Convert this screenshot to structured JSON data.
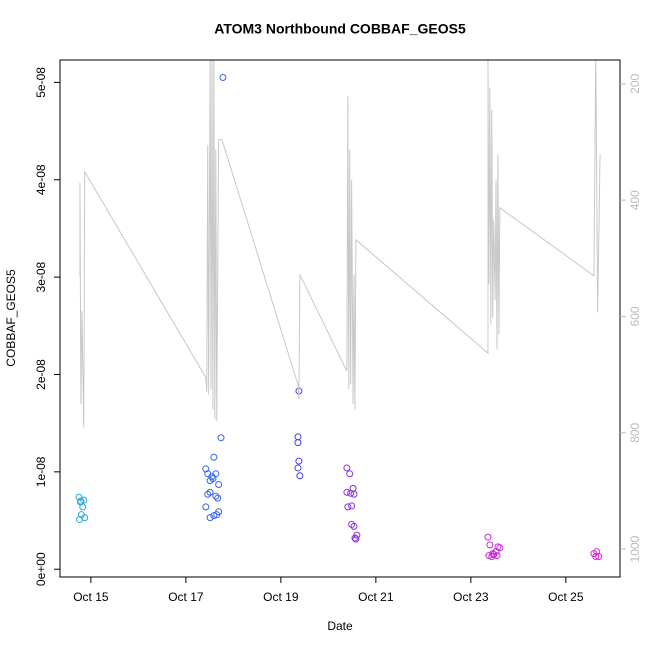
{
  "chart_data": {
    "type": "scatter",
    "title": "ATOM3 Northbound COBBAF_GEOS5",
    "xlabel": "Date",
    "ylabel": "COBBAF_GEOS5",
    "xlim": [
      14.35,
      26.14
    ],
    "xticks": [
      {
        "value": 15,
        "label": "Oct 15"
      },
      {
        "value": 17,
        "label": "Oct 17"
      },
      {
        "value": 19,
        "label": "Oct 19"
      },
      {
        "value": 21,
        "label": "Oct 21"
      },
      {
        "value": 23,
        "label": "Oct 23"
      },
      {
        "value": 25,
        "label": "Oct 25"
      }
    ],
    "ylim": [
      -8e-10,
      5.23e-08
    ],
    "yticks": [
      {
        "value": 0,
        "label": "0e+00"
      },
      {
        "value": 1e-08,
        "label": "1e-08"
      },
      {
        "value": 2e-08,
        "label": "2e-08"
      },
      {
        "value": 3e-08,
        "label": "3e-08"
      },
      {
        "value": 4e-08,
        "label": "4e-08"
      },
      {
        "value": 5e-08,
        "label": "5e-08"
      }
    ],
    "y2lim": [
      1048,
      159
    ],
    "y2ticks": [
      200,
      400,
      600,
      800,
      1000
    ],
    "y2color": "#bbbbbb",
    "series": [
      {
        "color": "#2aa7e6",
        "x": [
          14.75,
          14.85,
          14.78,
          14.83,
          14.8,
          14.76,
          14.87,
          14.79
        ],
        "values": [
          7.4e-09,
          7.1e-09,
          6.9e-09,
          6.4e-09,
          5.6e-09,
          5.1e-09,
          5.3e-09,
          7e-09
        ]
      },
      {
        "color": "#3567ee",
        "x": [
          17.42,
          17.46,
          17.51,
          17.55,
          17.59,
          17.63,
          17.51,
          17.46,
          17.63,
          17.67,
          17.69,
          17.42,
          17.69,
          17.65,
          17.51,
          17.59,
          17.74,
          17.78,
          17.57
        ],
        "values": [
          1.03e-08,
          9.8e-09,
          9.1e-09,
          9.5e-09,
          1.15e-08,
          9.8e-09,
          7.9e-09,
          7.7e-09,
          7.5e-09,
          7.3e-09,
          8.7e-09,
          6.4e-09,
          5.9e-09,
          5.6e-09,
          5.3e-09,
          5.5e-09,
          1.35e-08,
          5.05e-08,
          9.3e-09
        ]
      },
      {
        "color": "#4a3ee6",
        "x": [
          19.38,
          19.36,
          19.36,
          19.38,
          19.36,
          19.4
        ],
        "values": [
          1.83e-08,
          1.36e-08,
          1.3e-08,
          1.11e-08,
          1.04e-08,
          9.6e-09
        ]
      },
      {
        "color": "#8a2ee0",
        "x": [
          20.39,
          20.45,
          20.39,
          20.47,
          20.52,
          20.54,
          20.41,
          20.49,
          20.49,
          20.54,
          20.58,
          20.6,
          20.56
        ],
        "values": [
          1.04e-08,
          9.8e-09,
          7.9e-09,
          7.8e-09,
          8.3e-09,
          7.7e-09,
          6.4e-09,
          6.5e-09,
          4.6e-09,
          4.4e-09,
          3.1e-09,
          3.5e-09,
          3.2e-09
        ]
      },
      {
        "color": "#cc22dd",
        "x": [
          23.36,
          23.4,
          23.38,
          23.44,
          23.48,
          23.53,
          23.57,
          23.61,
          23.55,
          23.46
        ],
        "values": [
          3.3e-09,
          2.5e-09,
          1.4e-09,
          1.3e-09,
          1.5e-09,
          1.8e-09,
          2.3e-09,
          2.2e-09,
          1.4e-09,
          1.6e-09
        ]
      },
      {
        "color": "#e020e0",
        "x": [
          25.65,
          25.59,
          25.63,
          25.69
        ],
        "values": [
          1.8e-09,
          1.6e-09,
          1.3e-09,
          1.3e-09
        ]
      },
      {
        "type": "line",
        "axis": "y2",
        "color": "#c8c8c8",
        "x": [
          14.77,
          14.77,
          14.79,
          14.81,
          14.85,
          14.87,
          17.42,
          17.44,
          17.46,
          17.48,
          17.51,
          17.53,
          17.55,
          17.57,
          17.59,
          17.61,
          17.63,
          17.65,
          17.69,
          17.76,
          19.36,
          19.38,
          19.4,
          20.39,
          20.41,
          20.43,
          20.45,
          20.47,
          20.49,
          20.52,
          20.54,
          20.56,
          20.58,
          20.62,
          23.36,
          23.36,
          23.38,
          23.4,
          23.42,
          23.44,
          23.46,
          23.48,
          23.51,
          23.53,
          23.55,
          23.57,
          23.59,
          23.61,
          25.59,
          25.63,
          25.67,
          25.72
        ],
        "values": [
          530,
          370,
          751,
          591,
          791,
          351,
          705,
          730,
          305,
          734,
          150,
          725,
          150,
          760,
          150,
          777,
          313,
          780,
          296,
          296,
          717,
          742,
          528,
          694,
          221,
          725,
          313,
          717,
          365,
          751,
          528,
          760,
          468,
          471,
          663,
          150,
          545,
          207,
          614,
          245,
          602,
          433,
          571,
          365,
          657,
          322,
          631,
          413,
          530,
          150,
          593,
          322
        ]
      }
    ]
  }
}
